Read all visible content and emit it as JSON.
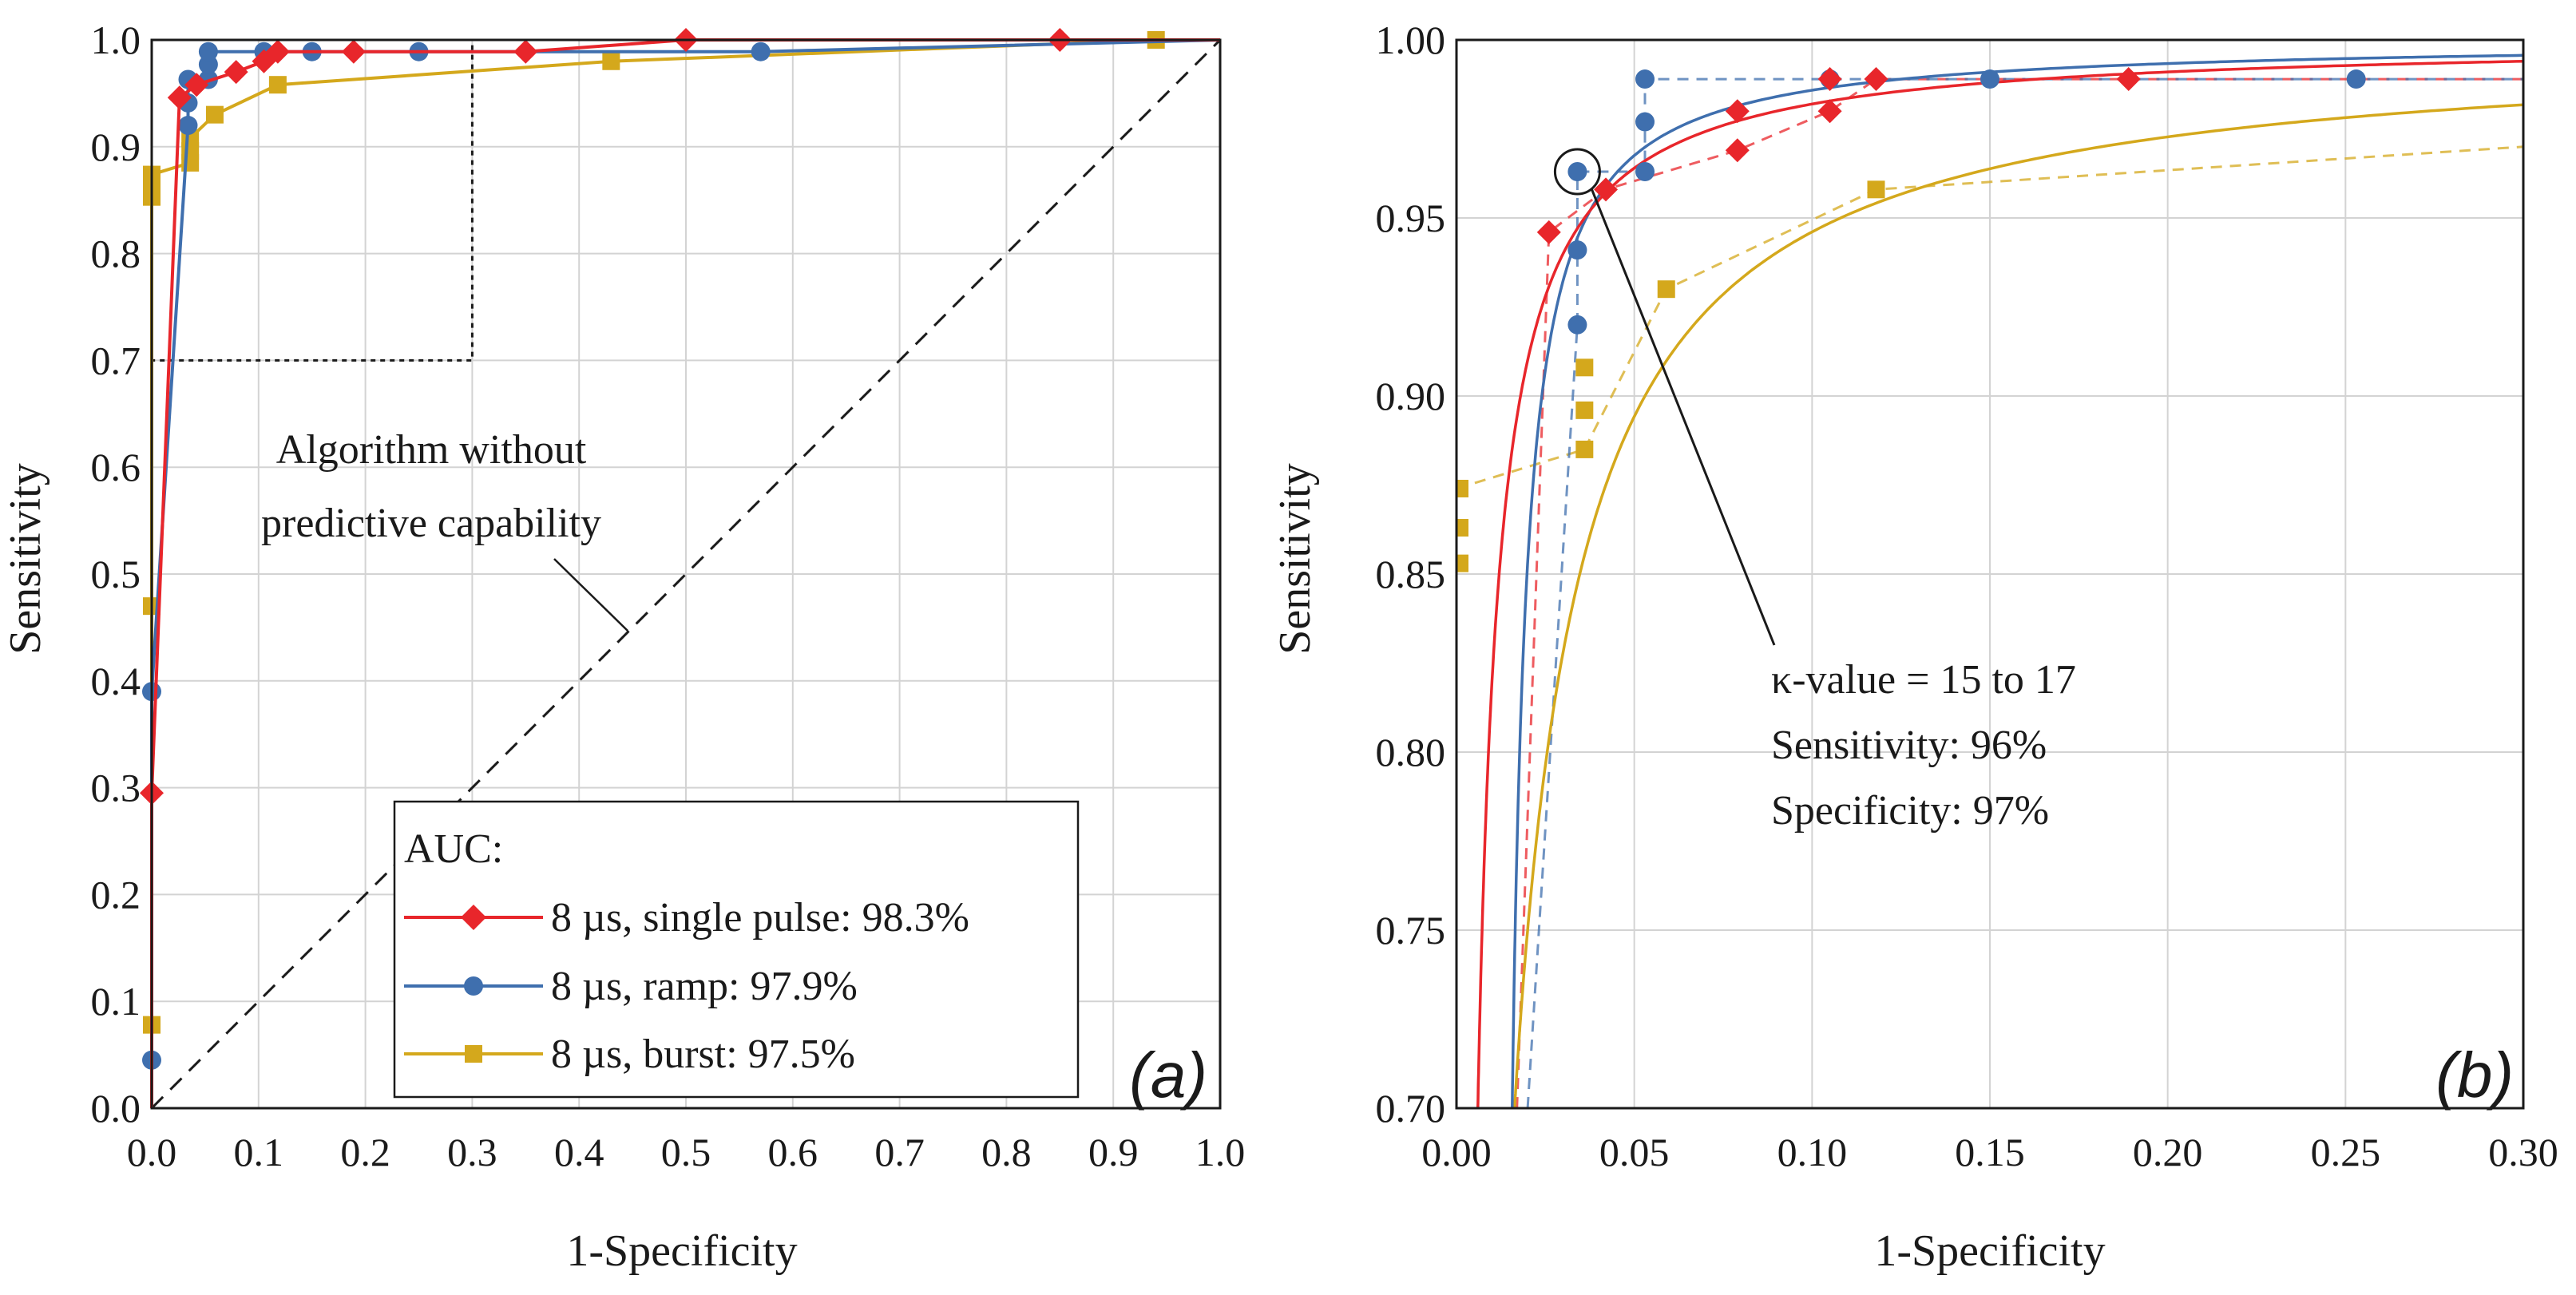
{
  "colors": {
    "red": "#e8262b",
    "blue": "#3f6fae",
    "gold": "#d4a81c",
    "grid": "#d3d3d3",
    "axis": "#1a1a1a"
  },
  "legend": {
    "title": "AUC:",
    "items": [
      {
        "label": "8 µs, single pulse: 98.3%",
        "color": "#e8262b",
        "marker": "diamond"
      },
      {
        "label": "8 µs, ramp: 97.9%",
        "color": "#3f6fae",
        "marker": "circle"
      },
      {
        "label": "8 µs, burst: 97.5%",
        "color": "#d4a81c",
        "marker": "square"
      }
    ]
  },
  "annotations": {
    "reference_line": [
      "Algorithm without",
      "predictive capability"
    ],
    "operating_point": [
      "κ-value = 15 to 17",
      "Sensitivity: 96%",
      "Specificity: 97%"
    ]
  },
  "chart_data": [
    {
      "panel": "(a)",
      "type": "line",
      "title": "",
      "xlabel": "1-Specificity",
      "ylabel": "Sensitivity",
      "xlim": [
        0,
        1
      ],
      "ylim": [
        0,
        1
      ],
      "xticks": [
        "0.0",
        "0.1",
        "0.2",
        "0.3",
        "0.4",
        "0.5",
        "0.6",
        "0.7",
        "0.8",
        "0.9",
        "1.0"
      ],
      "yticks": [
        "0.0",
        "0.1",
        "0.2",
        "0.3",
        "0.4",
        "0.5",
        "0.6",
        "0.7",
        "0.8",
        "0.9",
        "1.0"
      ],
      "grid": true,
      "zoom_box": {
        "x": [
          0,
          0.3
        ],
        "y": [
          0.7,
          1.0
        ]
      },
      "reference": {
        "x": [
          0,
          1
        ],
        "y": [
          0,
          1
        ]
      },
      "series": [
        {
          "name": "8 µs, single pulse",
          "color": "#e8262b",
          "marker": "diamond",
          "x": [
            0,
            0.0,
            0.026,
            0.042,
            0.079,
            0.105,
            0.118,
            0.189,
            0.35,
            0.5,
            0.85,
            1.0
          ],
          "y": [
            0,
            0.295,
            0.946,
            0.958,
            0.97,
            0.98,
            0.989,
            0.989,
            0.989,
            1.0,
            1.0,
            1.0
          ]
        },
        {
          "name": "8 µs, ramp",
          "color": "#3f6fae",
          "marker": "circle",
          "x": [
            0,
            0.0,
            0.0,
            0.034,
            0.034,
            0.034,
            0.053,
            0.053,
            0.053,
            0.105,
            0.15,
            0.25,
            0.57,
            1.0
          ],
          "y": [
            0,
            0.045,
            0.39,
            0.92,
            0.941,
            0.963,
            0.963,
            0.977,
            0.989,
            0.989,
            0.989,
            0.989,
            0.989,
            1.0
          ]
        },
        {
          "name": "8 µs, burst",
          "color": "#d4a81c",
          "marker": "square",
          "x": [
            0,
            0.0,
            0.0,
            0.0,
            0.0,
            0.0,
            0.036,
            0.036,
            0.036,
            0.059,
            0.118,
            0.43,
            0.94,
            1.0
          ],
          "y": [
            0,
            0.078,
            0.47,
            0.853,
            0.863,
            0.874,
            0.885,
            0.896,
            0.908,
            0.93,
            0.958,
            0.98,
            1.0,
            1.0
          ]
        }
      ]
    },
    {
      "panel": "(b)",
      "type": "line",
      "title": "",
      "xlabel": "1-Specificity",
      "ylabel": "Sensitivity",
      "xlim": [
        0,
        0.3
      ],
      "ylim": [
        0.7,
        1.0
      ],
      "xticks": [
        "0.00",
        "0.05",
        "0.10",
        "0.15",
        "0.20",
        "0.25",
        "0.30"
      ],
      "yticks": [
        "0.70",
        "0.75",
        "0.80",
        "0.85",
        "0.90",
        "0.95",
        "1.00"
      ],
      "grid": true,
      "highlight_point": {
        "x": 0.034,
        "y": 0.963
      },
      "series": [
        {
          "name": "8 µs, single pulse",
          "color": "#e8262b",
          "marker": "diamond",
          "x": [
            0.026,
            0.042,
            0.079,
            0.079,
            0.105,
            0.105,
            0.118,
            0.189
          ],
          "y": [
            0.946,
            0.958,
            0.969,
            0.98,
            0.98,
            0.989,
            0.989,
            0.989
          ],
          "fit": {
            "x0": 0.0,
            "a": 0.0018,
            "xmax": 0.3
          },
          "dashed_step": {
            "x": [
              0.017,
              0.026,
              0.042,
              0.079,
              0.105,
              0.118,
              0.3
            ],
            "y": [
              0.7,
              0.946,
              0.958,
              0.969,
              0.98,
              0.989,
              0.989
            ]
          }
        },
        {
          "name": "8 µs, ramp",
          "color": "#3f6fae",
          "marker": "circle",
          "x": [
            0.034,
            0.034,
            0.034,
            0.053,
            0.053,
            0.053,
            0.105,
            0.15,
            0.253
          ],
          "y": [
            0.92,
            0.941,
            0.963,
            0.963,
            0.977,
            0.989,
            0.989,
            0.989,
            0.989
          ],
          "fit": {
            "x0": 0.0115,
            "a": 0.00125,
            "xmax": 0.3
          },
          "dashed_step": {
            "x": [
              0.02,
              0.034,
              0.034,
              0.053,
              0.053,
              0.3
            ],
            "y": [
              0.7,
              0.92,
              0.963,
              0.963,
              0.989,
              0.989
            ]
          }
        },
        {
          "name": "8 µs, burst",
          "color": "#d4a81c",
          "marker": "square",
          "x": [
            0.0,
            0.0,
            0.0,
            0.036,
            0.036,
            0.036,
            0.059,
            0.118
          ],
          "y": [
            0.853,
            0.863,
            0.874,
            0.885,
            0.896,
            0.908,
            0.93,
            0.958
          ],
          "fit": {
            "x0": -0.002,
            "a": 0.0055,
            "xmax": 0.3
          },
          "dashed_step": {
            "x": [
              0.0,
              0.036,
              0.059,
              0.118,
              0.3
            ],
            "y": [
              0.874,
              0.885,
              0.93,
              0.958,
              0.97
            ]
          }
        }
      ]
    }
  ]
}
